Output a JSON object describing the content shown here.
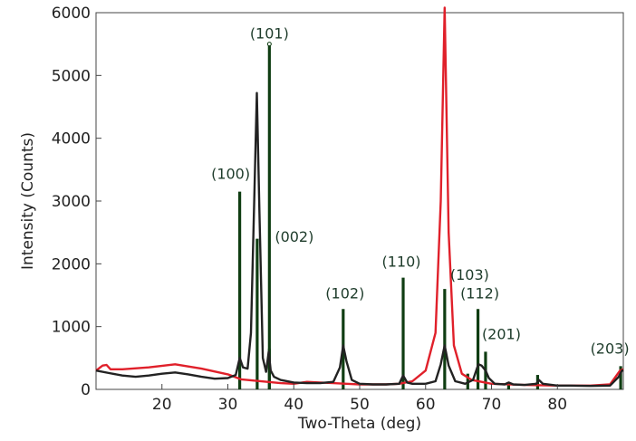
{
  "chart_data": {
    "type": "line",
    "title": "",
    "xlabel": "Two-Theta (deg)",
    "ylabel": "Intensity (Counts)",
    "xlim": [
      10,
      90
    ],
    "ylim": [
      0,
      6000
    ],
    "x_ticks": [
      20,
      30,
      40,
      50,
      60,
      70,
      80
    ],
    "y_ticks": [
      0,
      1000,
      2000,
      3000,
      4000,
      5000,
      6000
    ],
    "grid": false,
    "legend": "none",
    "colors": {
      "red": "#e0202a",
      "black": "#222222",
      "ref": "#0f3d12"
    },
    "series": [
      {
        "color": "#e0202a",
        "points": [
          [
            10,
            300
          ],
          [
            11,
            380
          ],
          [
            11.6,
            390
          ],
          [
            12.2,
            320
          ],
          [
            14,
            320
          ],
          [
            18,
            350
          ],
          [
            22,
            400
          ],
          [
            26,
            330
          ],
          [
            30,
            240
          ],
          [
            32,
            160
          ],
          [
            34,
            140
          ],
          [
            36,
            120
          ],
          [
            38,
            100
          ],
          [
            40,
            90
          ],
          [
            42,
            120
          ],
          [
            44,
            110
          ],
          [
            46,
            100
          ],
          [
            48,
            90
          ],
          [
            50,
            80
          ],
          [
            52,
            80
          ],
          [
            54,
            80
          ],
          [
            56,
            90
          ],
          [
            58,
            130
          ],
          [
            60,
            300
          ],
          [
            61.5,
            900
          ],
          [
            62.3,
            3000
          ],
          [
            62.9,
            6080
          ],
          [
            63.5,
            2500
          ],
          [
            64.3,
            700
          ],
          [
            65.5,
            250
          ],
          [
            67,
            150
          ],
          [
            70,
            90
          ],
          [
            75,
            70
          ],
          [
            80,
            60
          ],
          [
            85,
            60
          ],
          [
            88,
            80
          ],
          [
            89.5,
            300
          ],
          [
            90,
            320
          ]
        ]
      },
      {
        "color": "#222222",
        "points": [
          [
            10,
            300
          ],
          [
            12,
            260
          ],
          [
            14,
            220
          ],
          [
            16,
            200
          ],
          [
            18,
            220
          ],
          [
            20,
            250
          ],
          [
            22,
            270
          ],
          [
            24,
            240
          ],
          [
            26,
            200
          ],
          [
            28,
            170
          ],
          [
            30,
            180
          ],
          [
            31.2,
            230
          ],
          [
            31.8,
            500
          ],
          [
            32.3,
            350
          ],
          [
            33,
            330
          ],
          [
            33.5,
            900
          ],
          [
            34,
            3000
          ],
          [
            34.4,
            4720
          ],
          [
            34.8,
            2800
          ],
          [
            35.3,
            500
          ],
          [
            35.8,
            280
          ],
          [
            36.2,
            600
          ],
          [
            36.5,
            300
          ],
          [
            37,
            200
          ],
          [
            38,
            150
          ],
          [
            40,
            110
          ],
          [
            42,
            100
          ],
          [
            44,
            100
          ],
          [
            46,
            120
          ],
          [
            47,
            350
          ],
          [
            47.5,
            700
          ],
          [
            48,
            450
          ],
          [
            48.8,
            150
          ],
          [
            50,
            90
          ],
          [
            52,
            80
          ],
          [
            54,
            80
          ],
          [
            56,
            90
          ],
          [
            56.6,
            220
          ],
          [
            57.2,
            110
          ],
          [
            58,
            90
          ],
          [
            60,
            90
          ],
          [
            61.5,
            130
          ],
          [
            62.3,
            400
          ],
          [
            62.9,
            700
          ],
          [
            63.5,
            380
          ],
          [
            64.5,
            130
          ],
          [
            66,
            90
          ],
          [
            67.2,
            150
          ],
          [
            68,
            400
          ],
          [
            68.5,
            380
          ],
          [
            69.1,
            300
          ],
          [
            69.6,
            180
          ],
          [
            70.5,
            90
          ],
          [
            72,
            80
          ],
          [
            72.6,
            110
          ],
          [
            73.3,
            80
          ],
          [
            75,
            70
          ],
          [
            76.8,
            90
          ],
          [
            77.2,
            150
          ],
          [
            77.8,
            90
          ],
          [
            80,
            60
          ],
          [
            82,
            60
          ],
          [
            85,
            55
          ],
          [
            88,
            60
          ],
          [
            89.3,
            200
          ],
          [
            89.8,
            300
          ],
          [
            90,
            300
          ]
        ]
      }
    ],
    "reference_lines": [
      {
        "x": 31.8,
        "y": 3150,
        "label": "(100)"
      },
      {
        "x": 34.45,
        "y": 2400,
        "label": ""
      },
      {
        "x": 36.3,
        "y": 5500,
        "label": "(101)"
      },
      {
        "x": 36.3,
        "y": 650,
        "label": "(002)"
      },
      {
        "x": 47.5,
        "y": 1280,
        "label": "(102)"
      },
      {
        "x": 56.6,
        "y": 1780,
        "label": "(110)"
      },
      {
        "x": 62.9,
        "y": 1600,
        "label": "(103)"
      },
      {
        "x": 66.4,
        "y": 250,
        "label": ""
      },
      {
        "x": 67.95,
        "y": 1280,
        "label": "(112)"
      },
      {
        "x": 69.1,
        "y": 600,
        "label": "(201)"
      },
      {
        "x": 72.6,
        "y": 110,
        "label": ""
      },
      {
        "x": 77.0,
        "y": 230,
        "label": ""
      },
      {
        "x": 89.6,
        "y": 370,
        "label": "(203)"
      }
    ]
  }
}
